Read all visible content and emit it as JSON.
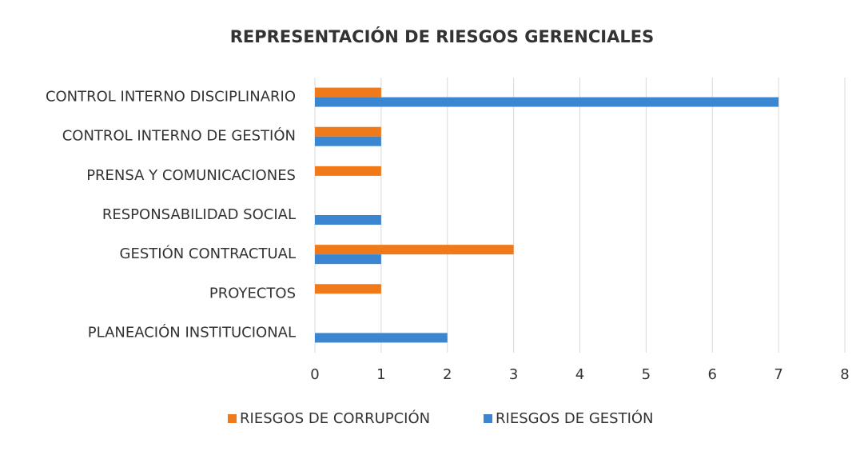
{
  "chart_data": {
    "type": "barh",
    "title": "REPRESENTACIÓN DE RIESGOS GERENCIALES",
    "categories": [
      "CONTROL INTERNO DISCIPLINARIO",
      "CONTROL INTERNO DE GESTIÓN",
      "PRENSA Y COMUNICACIONES",
      "RESPONSABILIDAD SOCIAL",
      "GESTIÓN CONTRACTUAL",
      "PROYECTOS",
      "PLANEACIÓN INSTITUCIONAL"
    ],
    "series": [
      {
        "name": "RIESGOS DE CORRUPCIÓN",
        "color": "#f07a1a",
        "values": [
          1,
          1,
          1,
          0,
          3,
          1,
          0
        ]
      },
      {
        "name": "RIESGOS DE GESTIÓN",
        "color": "#3a86d0",
        "values": [
          7,
          1,
          0,
          1,
          1,
          0,
          2
        ]
      }
    ],
    "xlim": [
      0,
      8
    ],
    "xticks": [
      0,
      1,
      2,
      3,
      4,
      5,
      6,
      7,
      8
    ],
    "grid": true,
    "legend": "bottom"
  }
}
